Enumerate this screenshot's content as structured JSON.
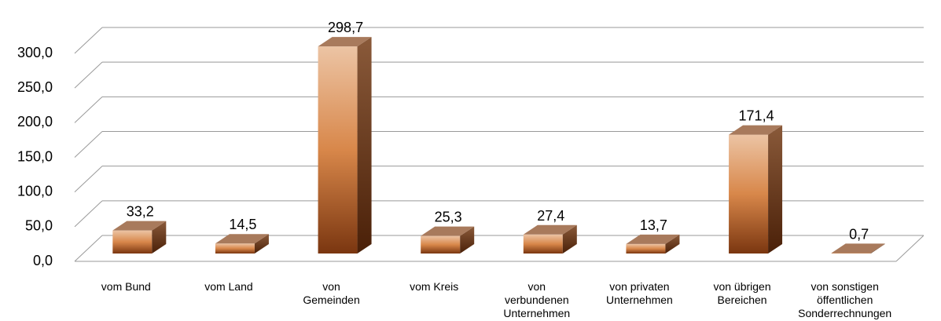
{
  "chart_data": {
    "type": "bar3d",
    "categories": [
      "vom Bund",
      "vom Land",
      "von\nGemeinden",
      "vom Kreis",
      "von\nverbundenen\nUnternehmen",
      "von privaten\nUnternehmen",
      "von übrigen\nBereichen",
      "von sonstigen\nöffentlichen\nSonderrechnungen"
    ],
    "values": [
      33.2,
      14.5,
      298.7,
      25.3,
      27.4,
      13.7,
      171.4,
      0.7
    ],
    "value_labels": [
      "33,2",
      "14,5",
      "298,7",
      "25,3",
      "27,4",
      "13,7",
      "171,4",
      "0,7"
    ],
    "ylim": [
      0,
      300
    ],
    "yticks": [
      {
        "value": 0,
        "label": "0,0"
      },
      {
        "value": 50,
        "label": "50,0"
      },
      {
        "value": 100,
        "label": "100,0"
      },
      {
        "value": 150,
        "label": "150,0"
      },
      {
        "value": 200,
        "label": "200,0"
      },
      {
        "value": 250,
        "label": "250,0"
      },
      {
        "value": 300,
        "label": "300,0"
      }
    ],
    "grid": true
  }
}
